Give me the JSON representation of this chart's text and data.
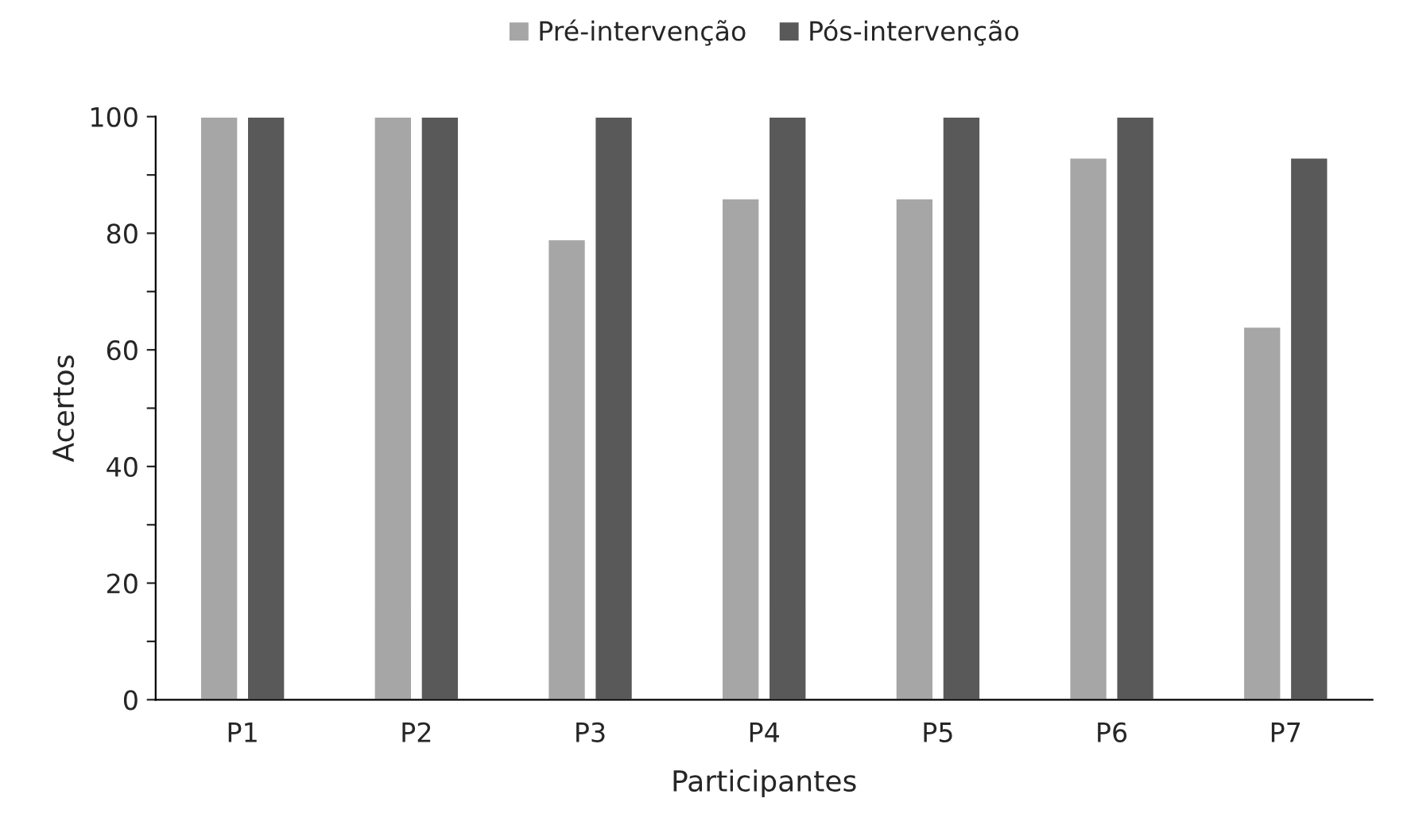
{
  "chart_data": {
    "type": "bar",
    "xlabel": "Participantes",
    "ylabel": "Acertos",
    "categories": [
      "P1",
      "P2",
      "P3",
      "P4",
      "P5",
      "P6",
      "P7"
    ],
    "series": [
      {
        "name": "Pré-intervenção",
        "color": "#a6a6a6",
        "values": [
          100,
          100,
          79,
          86,
          86,
          93,
          64
        ]
      },
      {
        "name": "Pós-intervenção",
        "color": "#595959",
        "values": [
          100,
          100,
          100,
          100,
          100,
          100,
          93
        ]
      }
    ],
    "ylim": [
      0,
      100
    ],
    "yticks": [
      0,
      {
        "value": 10,
        "label": null
      },
      20,
      {
        "value": 30,
        "label": null
      },
      40,
      {
        "value": 50,
        "label": null
      },
      60,
      {
        "value": 70,
        "label": null
      },
      80,
      {
        "value": 90,
        "label": null
      },
      100
    ],
    "grid": false,
    "legend": "top"
  }
}
